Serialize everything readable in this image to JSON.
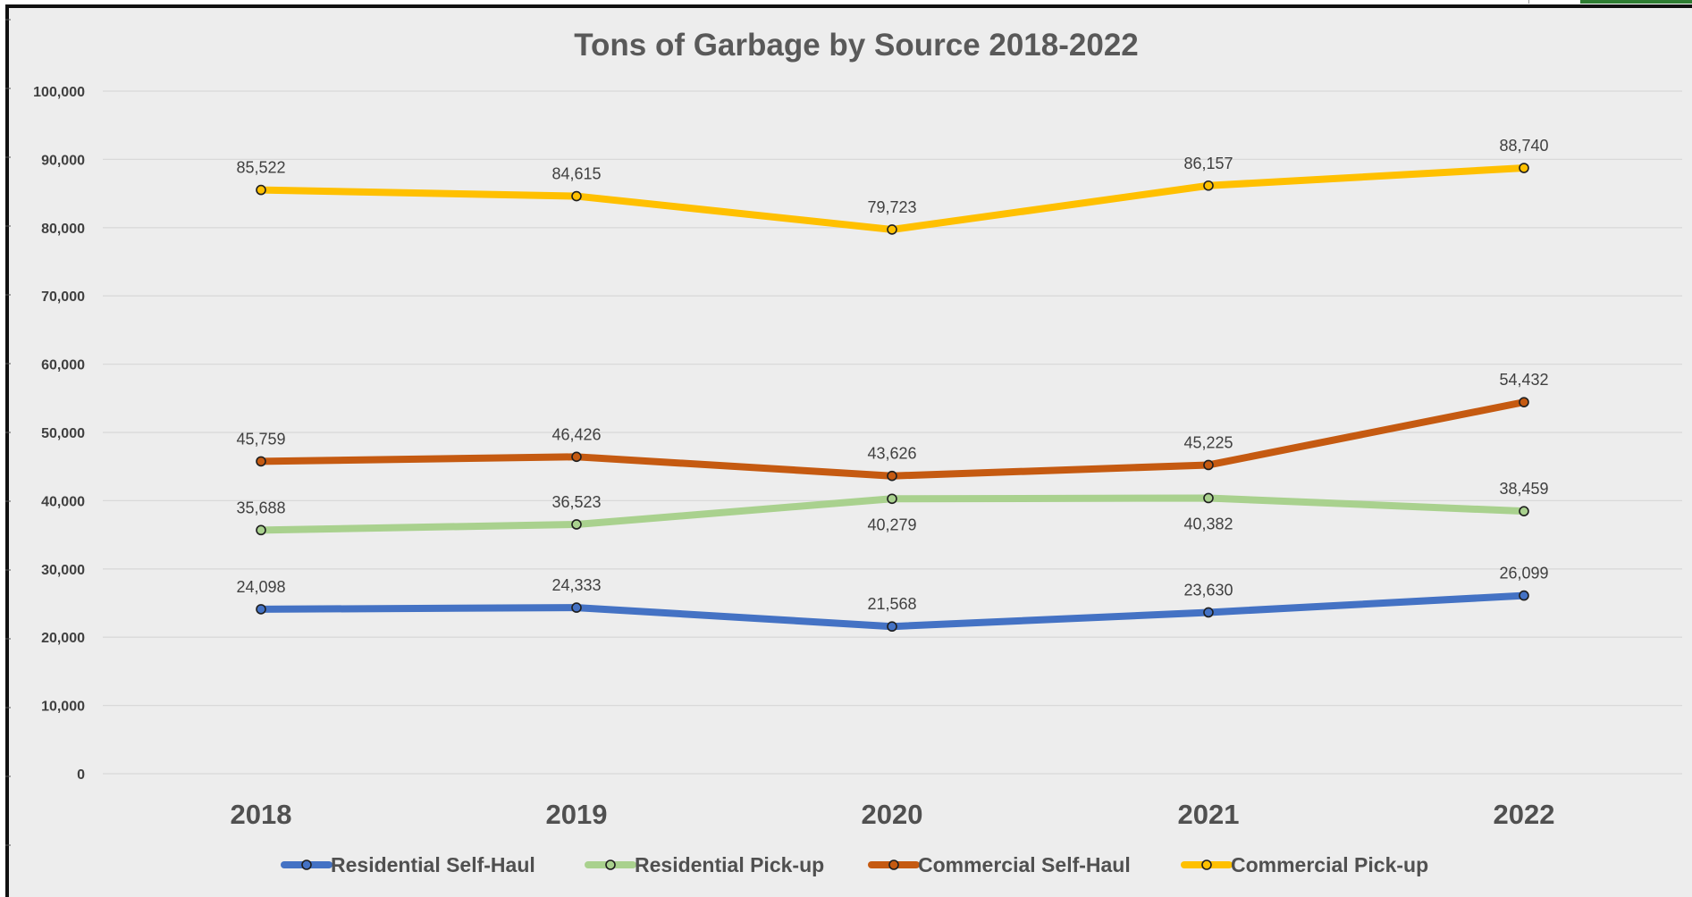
{
  "chart_data": {
    "type": "line",
    "title": "Tons of Garbage by Source 2018-2022",
    "xlabel": "",
    "ylabel": "",
    "categories": [
      "2018",
      "2019",
      "2020",
      "2021",
      "2022"
    ],
    "ylim": [
      0,
      100000
    ],
    "yticks": [
      0,
      10000,
      20000,
      30000,
      40000,
      50000,
      60000,
      70000,
      80000,
      90000,
      100000
    ],
    "ytick_labels": [
      "0",
      "10,000",
      "20,000",
      "30,000",
      "40,000",
      "50,000",
      "60,000",
      "70,000",
      "80,000",
      "90,000",
      "100,000"
    ],
    "grid": true,
    "legend_position": "bottom",
    "series": [
      {
        "name": "Residential Self-Haul",
        "color": "#4472c4",
        "values": [
          24098,
          24333,
          21568,
          23630,
          26099
        ],
        "labels": [
          "24,098",
          "24,333",
          "21,568",
          "23,630",
          "26,099"
        ],
        "label_position": [
          "above",
          "above",
          "above",
          "above",
          "above"
        ]
      },
      {
        "name": "Residential Pick-up",
        "color": "#a9d18e",
        "values": [
          35688,
          36523,
          40279,
          40382,
          38459
        ],
        "labels": [
          "35,688",
          "36,523",
          "40,279",
          "40,382",
          "38,459"
        ],
        "label_position": [
          "above",
          "above",
          "below",
          "below",
          "above"
        ]
      },
      {
        "name": "Commercial Self-Haul",
        "color": "#c55a11",
        "values": [
          45759,
          46426,
          43626,
          45225,
          54432
        ],
        "labels": [
          "45,759",
          "46,426",
          "43,626",
          "45,225",
          "54,432"
        ],
        "label_position": [
          "above",
          "above",
          "above",
          "above",
          "above"
        ]
      },
      {
        "name": "Commercial Pick-up",
        "color": "#ffc000",
        "values": [
          85522,
          84615,
          79723,
          86157,
          88740
        ],
        "labels": [
          "85,522",
          "84,615",
          "79,723",
          "86,157",
          "88,740"
        ],
        "label_position": [
          "above",
          "above",
          "above",
          "above",
          "above"
        ]
      }
    ]
  }
}
